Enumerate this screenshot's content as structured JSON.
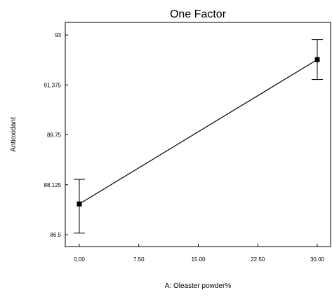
{
  "chart_data": {
    "type": "line",
    "title": "One Factor",
    "xlabel": "A: Oleaster powder%",
    "ylabel": "Antioxidant",
    "x_ticks": [
      "0.00",
      "7.50",
      "15.00",
      "22.50",
      "30.00"
    ],
    "y_ticks": [
      "86.5",
      "88.125",
      "89.75",
      "91.375",
      "93"
    ],
    "xlim": [
      0,
      30
    ],
    "ylim": [
      86.5,
      93
    ],
    "grid": false,
    "series": [
      {
        "x": [
          0,
          30
        ],
        "y": [
          87.5,
          92.2
        ],
        "error_low": [
          86.55,
          91.55
        ],
        "error_high": [
          88.3,
          92.85
        ]
      }
    ]
  }
}
